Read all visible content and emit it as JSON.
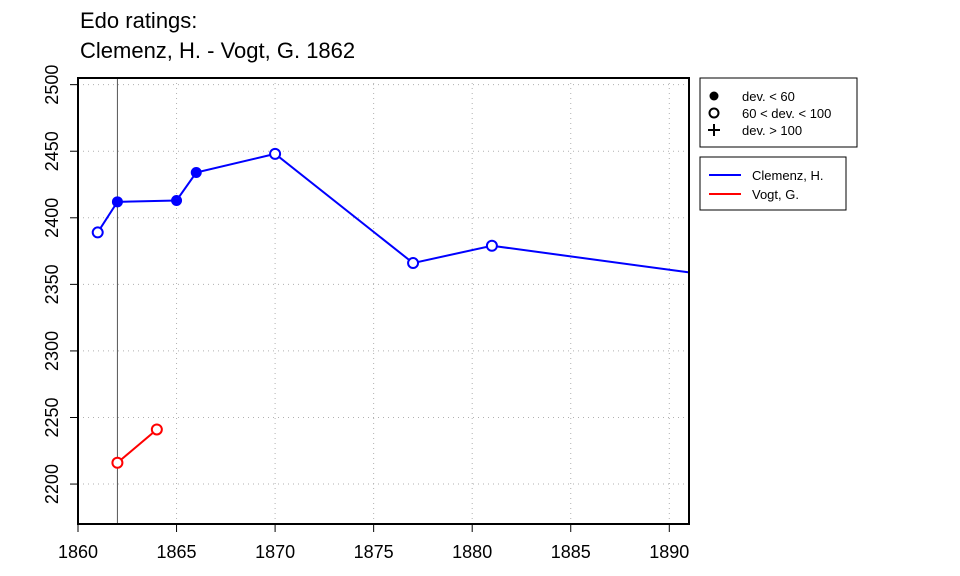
{
  "chart_data": {
    "type": "line",
    "title": "Edo ratings:",
    "subtitle": "Clemenz, H. - Vogt, G. 1862",
    "xlabel": "",
    "ylabel": "",
    "xlim": [
      1860,
      1891
    ],
    "ylim": [
      2170,
      2505
    ],
    "x_ticks": [
      1860,
      1865,
      1870,
      1875,
      1880,
      1885,
      1890
    ],
    "y_ticks": [
      2200,
      2250,
      2300,
      2350,
      2400,
      2450,
      2500
    ],
    "grid": true,
    "marker_year": 1862,
    "deviation_legend": [
      {
        "symbol": "filled-circle",
        "label": "dev. < 60"
      },
      {
        "symbol": "open-circle",
        "label": "60 < dev. < 100"
      },
      {
        "symbol": "plus",
        "label": "dev. > 100"
      }
    ],
    "series": [
      {
        "name": "Clemenz, H.",
        "color": "#0000ff",
        "points": [
          {
            "x": 1861,
            "y": 2389,
            "marker": "open-circle"
          },
          {
            "x": 1862,
            "y": 2412,
            "marker": "filled-circle"
          },
          {
            "x": 1865,
            "y": 2413,
            "marker": "filled-circle"
          },
          {
            "x": 1866,
            "y": 2434,
            "marker": "filled-circle"
          },
          {
            "x": 1870,
            "y": 2448,
            "marker": "open-circle"
          },
          {
            "x": 1877,
            "y": 2366,
            "marker": "open-circle"
          },
          {
            "x": 1881,
            "y": 2379,
            "marker": "open-circle"
          },
          {
            "x": 1891,
            "y": 2359,
            "marker": "none"
          }
        ]
      },
      {
        "name": "Vogt, G.",
        "color": "#ff0000",
        "points": [
          {
            "x": 1862,
            "y": 2216,
            "marker": "open-circle"
          },
          {
            "x": 1864,
            "y": 2241,
            "marker": "open-circle"
          }
        ]
      }
    ]
  }
}
